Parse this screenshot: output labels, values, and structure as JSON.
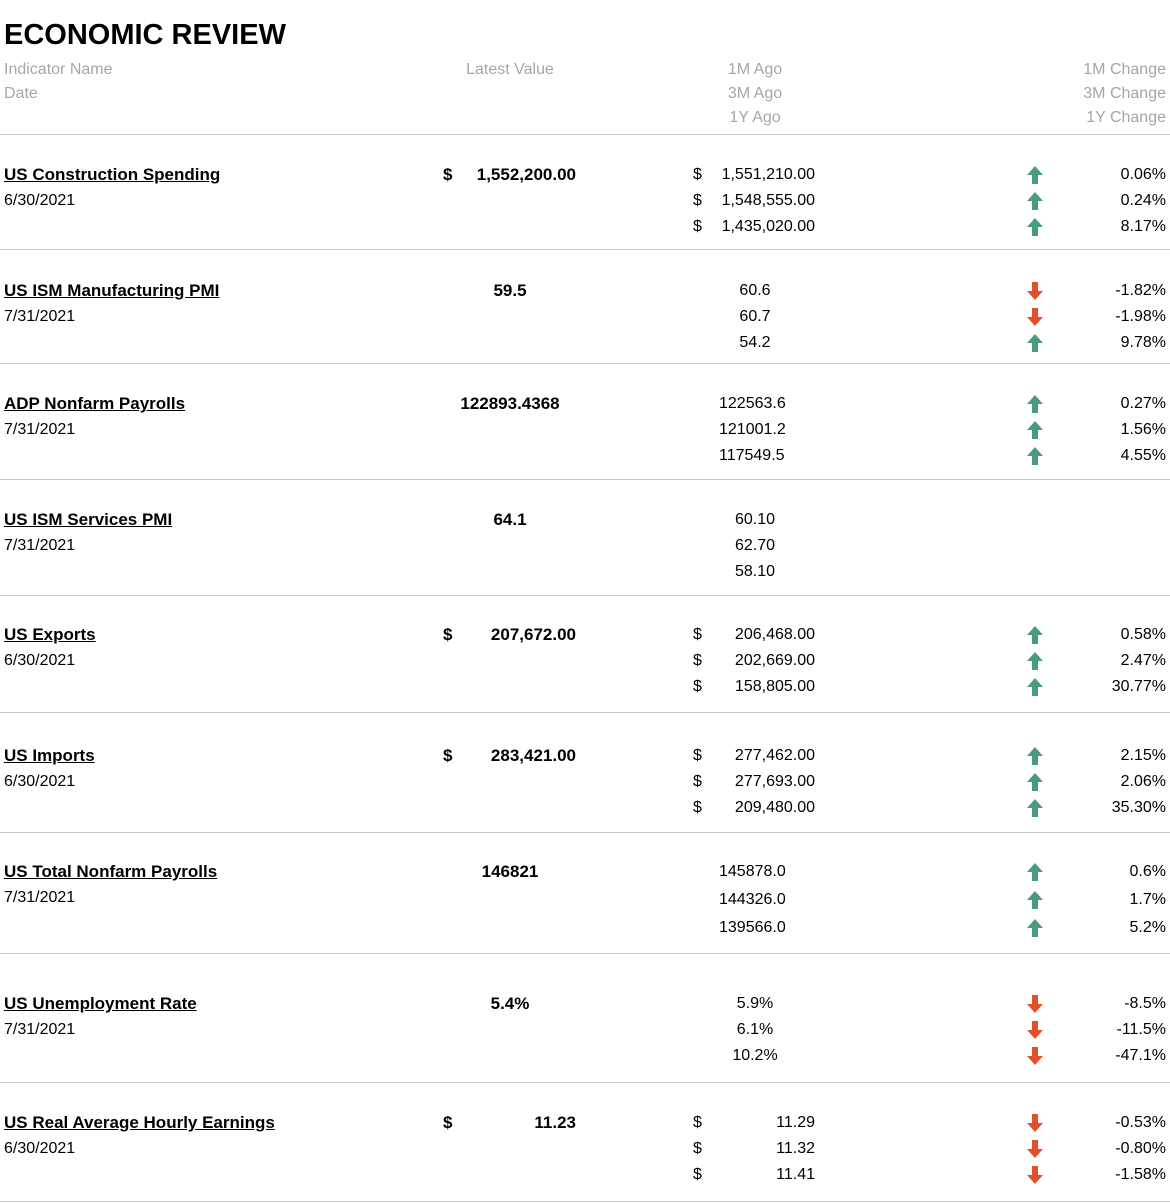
{
  "title": "ECONOMIC REVIEW",
  "header": {
    "name": "Indicator Name",
    "date": "Date",
    "latest": "Latest Value",
    "ago_1m": "1M Ago",
    "ago_3m": "3M Ago",
    "ago_1y": "1Y Ago",
    "change_1m": "1M Change",
    "change_3m": "3M Change",
    "change_1y": "1Y Change"
  },
  "colors": {
    "up": "#4a9b7b",
    "down": "#e1502b",
    "header_text": "#a6a6a6",
    "separator": "#c8c8c8"
  },
  "indicators": [
    {
      "name": "US Construction Spending",
      "date": "6/30/2021",
      "latest": {
        "currency": "$",
        "value": "1,552,200.00"
      },
      "ago": [
        {
          "currency": "$",
          "value": "1,551,210.00"
        },
        {
          "currency": "$",
          "value": "1,548,555.00"
        },
        {
          "currency": "$",
          "value": "1,435,020.00"
        }
      ],
      "changes": [
        {
          "value": "0.06%",
          "direction": "up"
        },
        {
          "value": "0.24%",
          "direction": "up"
        },
        {
          "value": "8.17%",
          "direction": "up"
        }
      ]
    },
    {
      "name": "US ISM Manufacturing PMI",
      "date": "7/31/2021",
      "latest": {
        "currency": "",
        "value": "59.5"
      },
      "ago": [
        {
          "currency": "",
          "value": "60.6"
        },
        {
          "currency": "",
          "value": "60.7"
        },
        {
          "currency": "",
          "value": "54.2"
        }
      ],
      "changes": [
        {
          "value": "-1.82%",
          "direction": "down"
        },
        {
          "value": "-1.98%",
          "direction": "down"
        },
        {
          "value": "9.78%",
          "direction": "up"
        }
      ]
    },
    {
      "name": "ADP Nonfarm Payrolls",
      "date": "7/31/2021",
      "latest": {
        "currency": "",
        "value": "122893.4368"
      },
      "ago": [
        {
          "currency": "",
          "value": "122563.6"
        },
        {
          "currency": "",
          "value": "121001.2"
        },
        {
          "currency": "",
          "value": "117549.5"
        }
      ],
      "changes": [
        {
          "value": "0.27%",
          "direction": "up"
        },
        {
          "value": "1.56%",
          "direction": "up"
        },
        {
          "value": "4.55%",
          "direction": "up"
        }
      ]
    },
    {
      "name": "US ISM Services PMI",
      "date": "7/31/2021",
      "latest": {
        "currency": "",
        "value": "64.1"
      },
      "ago": [
        {
          "currency": "",
          "value": "60.10"
        },
        {
          "currency": "",
          "value": "62.70"
        },
        {
          "currency": "",
          "value": "58.10"
        }
      ],
      "changes": []
    },
    {
      "name": "US Exports",
      "date": "6/30/2021",
      "latest": {
        "currency": "$",
        "value": "207,672.00"
      },
      "ago": [
        {
          "currency": "$",
          "value": "206,468.00"
        },
        {
          "currency": "$",
          "value": "202,669.00"
        },
        {
          "currency": "$",
          "value": "158,805.00"
        }
      ],
      "changes": [
        {
          "value": "0.58%",
          "direction": "up"
        },
        {
          "value": "2.47%",
          "direction": "up"
        },
        {
          "value": "30.77%",
          "direction": "up"
        }
      ]
    },
    {
      "name": "US Imports",
      "date": "6/30/2021",
      "latest": {
        "currency": "$",
        "value": "283,421.00"
      },
      "ago": [
        {
          "currency": "$",
          "value": "277,462.00"
        },
        {
          "currency": "$",
          "value": "277,693.00"
        },
        {
          "currency": "$",
          "value": "209,480.00"
        }
      ],
      "changes": [
        {
          "value": "2.15%",
          "direction": "up"
        },
        {
          "value": "2.06%",
          "direction": "up"
        },
        {
          "value": "35.30%",
          "direction": "up"
        }
      ]
    },
    {
      "name": "US Total Nonfarm Payrolls",
      "date": "7/31/2021",
      "latest": {
        "currency": "",
        "value": "146821"
      },
      "ago": [
        {
          "currency": "",
          "value": "145878.0"
        },
        {
          "currency": "",
          "value": "144326.0"
        },
        {
          "currency": "",
          "value": "139566.0"
        }
      ],
      "changes": [
        {
          "value": "0.6%",
          "direction": "up"
        },
        {
          "value": "1.7%",
          "direction": "up"
        },
        {
          "value": "5.2%",
          "direction": "up"
        }
      ]
    },
    {
      "name": "US Unemployment Rate",
      "date": "7/31/2021",
      "latest": {
        "currency": "",
        "value": "5.4%"
      },
      "ago": [
        {
          "currency": "",
          "value": "5.9%"
        },
        {
          "currency": "",
          "value": "6.1%"
        },
        {
          "currency": "",
          "value": "10.2%"
        }
      ],
      "changes": [
        {
          "value": "-8.5%",
          "direction": "down"
        },
        {
          "value": "-11.5%",
          "direction": "down"
        },
        {
          "value": "-47.1%",
          "direction": "down"
        }
      ]
    },
    {
      "name": "US Real Average Hourly Earnings",
      "date": "6/30/2021",
      "latest": {
        "currency": "$",
        "value": "11.23"
      },
      "ago": [
        {
          "currency": "$",
          "value": "11.29"
        },
        {
          "currency": "$",
          "value": "11.32"
        },
        {
          "currency": "$",
          "value": "11.41"
        }
      ],
      "changes": [
        {
          "value": "-0.53%",
          "direction": "down"
        },
        {
          "value": "-0.80%",
          "direction": "down"
        },
        {
          "value": "-1.58%",
          "direction": "down"
        }
      ]
    }
  ]
}
